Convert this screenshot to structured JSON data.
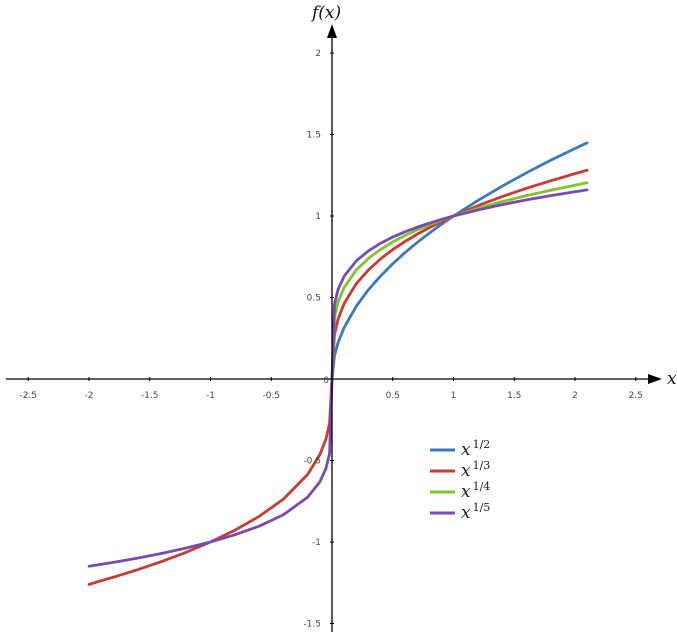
{
  "chart_data": {
    "type": "line",
    "title": "",
    "xlabel": "x",
    "ylabel": "f(x)",
    "xlim": [
      -2.5,
      2.5
    ],
    "ylim": [
      -1.5,
      2
    ],
    "xticks": [
      {
        "value": -2.5,
        "label": "-2.5"
      },
      {
        "value": -2,
        "label": "-2"
      },
      {
        "value": -1.5,
        "label": "-1.5"
      },
      {
        "value": -1,
        "label": "-1"
      },
      {
        "value": -0.5,
        "label": "-0.5"
      },
      {
        "value": 0,
        "label": "0"
      },
      {
        "value": 0.5,
        "label": "0.5"
      },
      {
        "value": 1,
        "label": "1"
      },
      {
        "value": 1.5,
        "label": "1.5"
      },
      {
        "value": 2,
        "label": "2"
      },
      {
        "value": 2.5,
        "label": "2.5"
      }
    ],
    "yticks": [
      {
        "value": -1.5,
        "label": "-1.5"
      },
      {
        "value": -1,
        "label": "-1"
      },
      {
        "value": -0.5,
        "label": "-0.5"
      },
      {
        "value": 0.5,
        "label": "0.5"
      },
      {
        "value": 1,
        "label": "1"
      },
      {
        "value": 1.5,
        "label": "1.5"
      },
      {
        "value": 2,
        "label": "2"
      }
    ],
    "grid": false,
    "legend": "lower-right",
    "series": [
      {
        "base": "x",
        "exponent": "1/2",
        "color": "#3a78c0",
        "x": [
          0,
          0.02,
          0.05,
          0.1,
          0.2,
          0.3,
          0.4,
          0.5,
          0.6,
          0.7,
          0.8,
          0.9,
          1.0,
          1.2,
          1.4,
          1.6,
          1.8,
          2.0,
          2.1
        ],
        "y": [
          0,
          0.141,
          0.224,
          0.316,
          0.447,
          0.548,
          0.632,
          0.707,
          0.775,
          0.837,
          0.894,
          0.949,
          1.0,
          1.095,
          1.183,
          1.265,
          1.342,
          1.414,
          1.449
        ]
      },
      {
        "base": "x",
        "exponent": "1/3",
        "color": "#c83a32",
        "x": [
          -2.0,
          -1.8,
          -1.6,
          -1.4,
          -1.2,
          -1.0,
          -0.8,
          -0.6,
          -0.4,
          -0.2,
          -0.1,
          -0.05,
          -0.02,
          0,
          0.02,
          0.05,
          0.1,
          0.2,
          0.3,
          0.4,
          0.5,
          0.6,
          0.7,
          0.8,
          0.9,
          1.0,
          1.2,
          1.4,
          1.6,
          1.8,
          2.0,
          2.1
        ],
        "y": [
          -1.26,
          -1.216,
          -1.17,
          -1.119,
          -1.063,
          -1.0,
          -0.928,
          -0.843,
          -0.737,
          -0.585,
          -0.464,
          -0.368,
          -0.271,
          0,
          0.271,
          0.368,
          0.464,
          0.585,
          0.669,
          0.737,
          0.794,
          0.843,
          0.888,
          0.928,
          0.965,
          1.0,
          1.063,
          1.119,
          1.17,
          1.216,
          1.26,
          1.281
        ]
      },
      {
        "base": "x",
        "exponent": "1/4",
        "color": "#7ec42a",
        "x": [
          0,
          0.02,
          0.05,
          0.1,
          0.2,
          0.3,
          0.4,
          0.5,
          0.6,
          0.7,
          0.8,
          0.9,
          1.0,
          1.2,
          1.4,
          1.6,
          1.8,
          2.0,
          2.1
        ],
        "y": [
          0,
          0.376,
          0.473,
          0.562,
          0.669,
          0.74,
          0.795,
          0.841,
          0.88,
          0.915,
          0.946,
          0.974,
          1.0,
          1.047,
          1.088,
          1.125,
          1.158,
          1.189,
          1.204
        ]
      },
      {
        "base": "x",
        "exponent": "1/5",
        "color": "#7a4ab4",
        "x": [
          -2.0,
          -1.8,
          -1.6,
          -1.4,
          -1.2,
          -1.0,
          -0.8,
          -0.6,
          -0.4,
          -0.2,
          -0.1,
          -0.05,
          -0.02,
          0,
          0.02,
          0.05,
          0.1,
          0.2,
          0.3,
          0.4,
          0.5,
          0.6,
          0.7,
          0.8,
          0.9,
          1.0,
          1.2,
          1.4,
          1.6,
          1.8,
          2.0,
          2.1
        ],
        "y": [
          -1.149,
          -1.125,
          -1.099,
          -1.07,
          -1.037,
          -1.0,
          -0.956,
          -0.903,
          -0.833,
          -0.725,
          -0.631,
          -0.549,
          -0.457,
          0,
          0.457,
          0.549,
          0.631,
          0.725,
          0.786,
          0.833,
          0.871,
          0.903,
          0.931,
          0.956,
          0.979,
          1.0,
          1.037,
          1.07,
          1.099,
          1.125,
          1.149,
          1.16
        ]
      }
    ]
  }
}
